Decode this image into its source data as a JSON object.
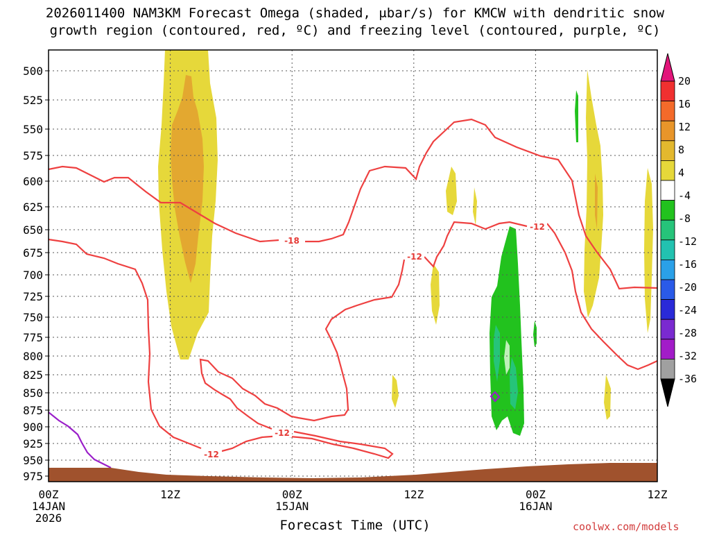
{
  "title_line1": "2026011400 NAM3KM Forecast Omega (shaded, μbar/s) for KMCW with dendritic snow",
  "title_line2": "growth region (contoured, red, ºC) and freezing level (contoured, purple, ºC)",
  "xlabel": "Forecast Time (UTC)",
  "credit": "coolwx.com/models",
  "chart_data": {
    "type": "heatmap",
    "y_axis": {
      "label": "",
      "ticks": [
        500,
        525,
        550,
        575,
        600,
        625,
        650,
        675,
        700,
        725,
        750,
        775,
        800,
        825,
        850,
        875,
        900,
        925,
        950,
        975
      ],
      "range": [
        475,
        985
      ],
      "scale": "pressure (hPa), inverted"
    },
    "x_axis": {
      "ticks": [
        {
          "hour": 0,
          "lines": [
            "00Z",
            "14JAN",
            "2026"
          ]
        },
        {
          "hour": 12,
          "lines": [
            "12Z"
          ]
        },
        {
          "hour": 24,
          "lines": [
            "00Z",
            "15JAN"
          ]
        },
        {
          "hour": 36,
          "lines": [
            "12Z"
          ]
        },
        {
          "hour": 48,
          "lines": [
            "00Z",
            "16JAN"
          ]
        },
        {
          "hour": 60,
          "lines": [
            "12Z"
          ]
        }
      ],
      "range": [
        0,
        60
      ]
    },
    "grid": true,
    "colorbar": {
      "labels": [
        20,
        16,
        12,
        8,
        4,
        -4,
        -8,
        -12,
        -16,
        -20,
        -24,
        -28,
        -32,
        -36
      ],
      "colors": [
        "#e2157a",
        "#f03030",
        "#f46a2a",
        "#e8952a",
        "#e3b82e",
        "#e6d83a",
        "#ffffff",
        "#22c21e",
        "#26c47a",
        "#22c2b0",
        "#2aa0e8",
        "#2a5ae8",
        "#2a2ad8",
        "#7a2ad0",
        "#a21cc8",
        "#a0a0a0",
        "#000000"
      ]
    },
    "contour_labels": [
      {
        "value": "-18",
        "color": "#e53935"
      },
      {
        "value": "-12",
        "color": "#e53935"
      },
      {
        "value": "-12",
        "color": "#e53935"
      },
      {
        "value": "-12",
        "color": "#e53935"
      },
      {
        "value": "-12",
        "color": "#e53935"
      }
    ],
    "freezing_level_color": "#9a1fc9",
    "dgz_color": "#ee4040",
    "terrain_color": "#a0522d",
    "omega_regions": [
      {
        "name": "yellow-column-12z",
        "value": 6
      },
      {
        "name": "orange-core-12z",
        "value": 10
      },
      {
        "name": "green-column-16jan",
        "value": -6
      },
      {
        "name": "teal-cores-16jan",
        "value": -9
      },
      {
        "name": "yellow-column-18z16",
        "value": 6
      }
    ]
  }
}
